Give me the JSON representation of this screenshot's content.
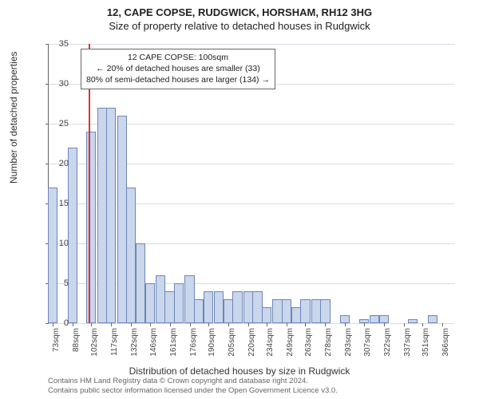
{
  "title_line1": "12, CAPE COPSE, RUDGWICK, HORSHAM, RH12 3HG",
  "title_line2": "Size of property relative to detached houses in Rudgwick",
  "ylabel": "Number of detached properties",
  "xlabel": "Distribution of detached houses by size in Rudgwick",
  "footer_line1": "Contains HM Land Registry data © Crown copyright and database right 2024.",
  "footer_line2": "Contains public sector information licensed under the Open Government Licence v3.0.",
  "chart": {
    "type": "histogram",
    "ylim": [
      0,
      35
    ],
    "ytick_step": 5,
    "bar_fill": "#c9d6ec",
    "bar_border": "#6d86b7",
    "grid_color": "#d8dde4",
    "background": "#ffffff",
    "marker_color": "#d93333",
    "marker_x": 100,
    "xticks": [
      73,
      88,
      102,
      117,
      132,
      146,
      161,
      176,
      190,
      205,
      220,
      234,
      249,
      263,
      278,
      293,
      307,
      322,
      337,
      351,
      366
    ],
    "xtick_unit": "sqm",
    "bars": [
      {
        "x": 73,
        "h": 17
      },
      {
        "x": 88,
        "h": 22
      },
      {
        "x": 102,
        "h": 24
      },
      {
        "x": 110,
        "h": 27
      },
      {
        "x": 117,
        "h": 27
      },
      {
        "x": 125,
        "h": 26
      },
      {
        "x": 132,
        "h": 17
      },
      {
        "x": 139,
        "h": 10
      },
      {
        "x": 146,
        "h": 5
      },
      {
        "x": 154,
        "h": 6
      },
      {
        "x": 161,
        "h": 4
      },
      {
        "x": 168,
        "h": 5
      },
      {
        "x": 176,
        "h": 6
      },
      {
        "x": 183,
        "h": 3
      },
      {
        "x": 190,
        "h": 4
      },
      {
        "x": 198,
        "h": 4
      },
      {
        "x": 205,
        "h": 3
      },
      {
        "x": 212,
        "h": 4
      },
      {
        "x": 220,
        "h": 4
      },
      {
        "x": 227,
        "h": 4
      },
      {
        "x": 234,
        "h": 2
      },
      {
        "x": 242,
        "h": 3
      },
      {
        "x": 249,
        "h": 3
      },
      {
        "x": 256,
        "h": 2
      },
      {
        "x": 263,
        "h": 3
      },
      {
        "x": 271,
        "h": 3
      },
      {
        "x": 278,
        "h": 3
      },
      {
        "x": 285,
        "h": 0
      },
      {
        "x": 293,
        "h": 1
      },
      {
        "x": 300,
        "h": 0
      },
      {
        "x": 307,
        "h": 0.5
      },
      {
        "x": 315,
        "h": 1
      },
      {
        "x": 322,
        "h": 1
      },
      {
        "x": 329,
        "h": 0
      },
      {
        "x": 337,
        "h": 0
      },
      {
        "x": 344,
        "h": 0.5
      },
      {
        "x": 351,
        "h": 0
      },
      {
        "x": 359,
        "h": 1
      },
      {
        "x": 366,
        "h": 0
      }
    ],
    "x_domain": [
      70,
      375
    ],
    "bar_width_sqm": 7.3
  },
  "annotation": {
    "line1": "12 CAPE COPSE: 100sqm",
    "line2": "← 20% of detached houses are smaller (33)",
    "line3": "80% of semi-detached houses are larger (134) →"
  }
}
